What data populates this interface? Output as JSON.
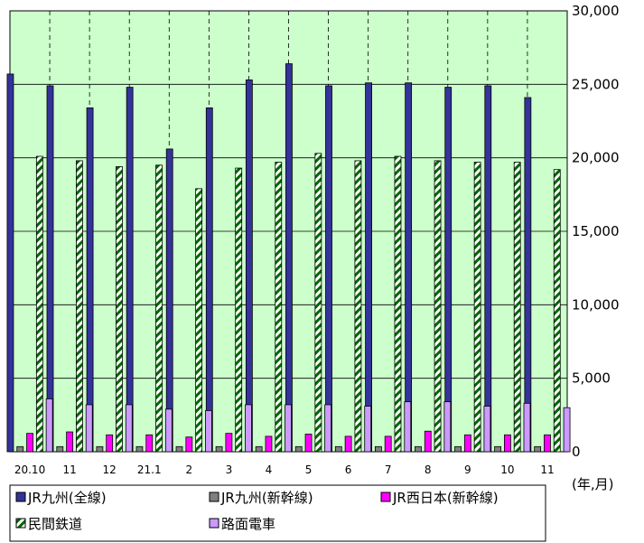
{
  "chart_data": {
    "type": "bar",
    "categories": [
      "20.10",
      "11",
      "12",
      "21.1",
      "2",
      "3",
      "4",
      "5",
      "6",
      "7",
      "8",
      "9",
      "10",
      "11"
    ],
    "ylim": [
      0,
      30000
    ],
    "yticks": [
      "0",
      "5,000",
      "10,000",
      "15,000",
      "20,000",
      "25,000",
      "30,000"
    ],
    "xlabel": "(年,月)",
    "grid": true,
    "legend_position": "bottom",
    "background_color": "#ccffcc",
    "series": [
      {
        "name": "JR九州(全線)",
        "color": "#333399",
        "pattern": "solid",
        "values": [
          25700,
          24900,
          23400,
          24800,
          20600,
          23400,
          25300,
          26400,
          24900,
          25100,
          25100,
          24800,
          24900,
          24100
        ]
      },
      {
        "name": "JR九州(新幹線)",
        "color": "#808080",
        "pattern": "solid",
        "values": [
          350,
          350,
          350,
          350,
          350,
          350,
          350,
          350,
          350,
          350,
          350,
          350,
          350,
          350
        ]
      },
      {
        "name": "JR西日本(新幹線)",
        "color": "#ff00ff",
        "pattern": "solid",
        "values": [
          1250,
          1350,
          1150,
          1150,
          1000,
          1250,
          1050,
          1200,
          1050,
          1050,
          1400,
          1150,
          1150,
          1150
        ]
      },
      {
        "name": "民間鉄道",
        "color": "#006600",
        "pattern": "hatched",
        "values": [
          20100,
          19800,
          19400,
          19500,
          17900,
          19300,
          19700,
          20300,
          19800,
          20100,
          19800,
          19700,
          19700,
          19200
        ]
      },
      {
        "name": "路面電車",
        "color": "#cc99ff",
        "pattern": "solid",
        "values": [
          3600,
          3200,
          3200,
          2900,
          2800,
          3200,
          3200,
          3200,
          3100,
          3400,
          3400,
          3100,
          3300,
          3000
        ]
      }
    ]
  }
}
